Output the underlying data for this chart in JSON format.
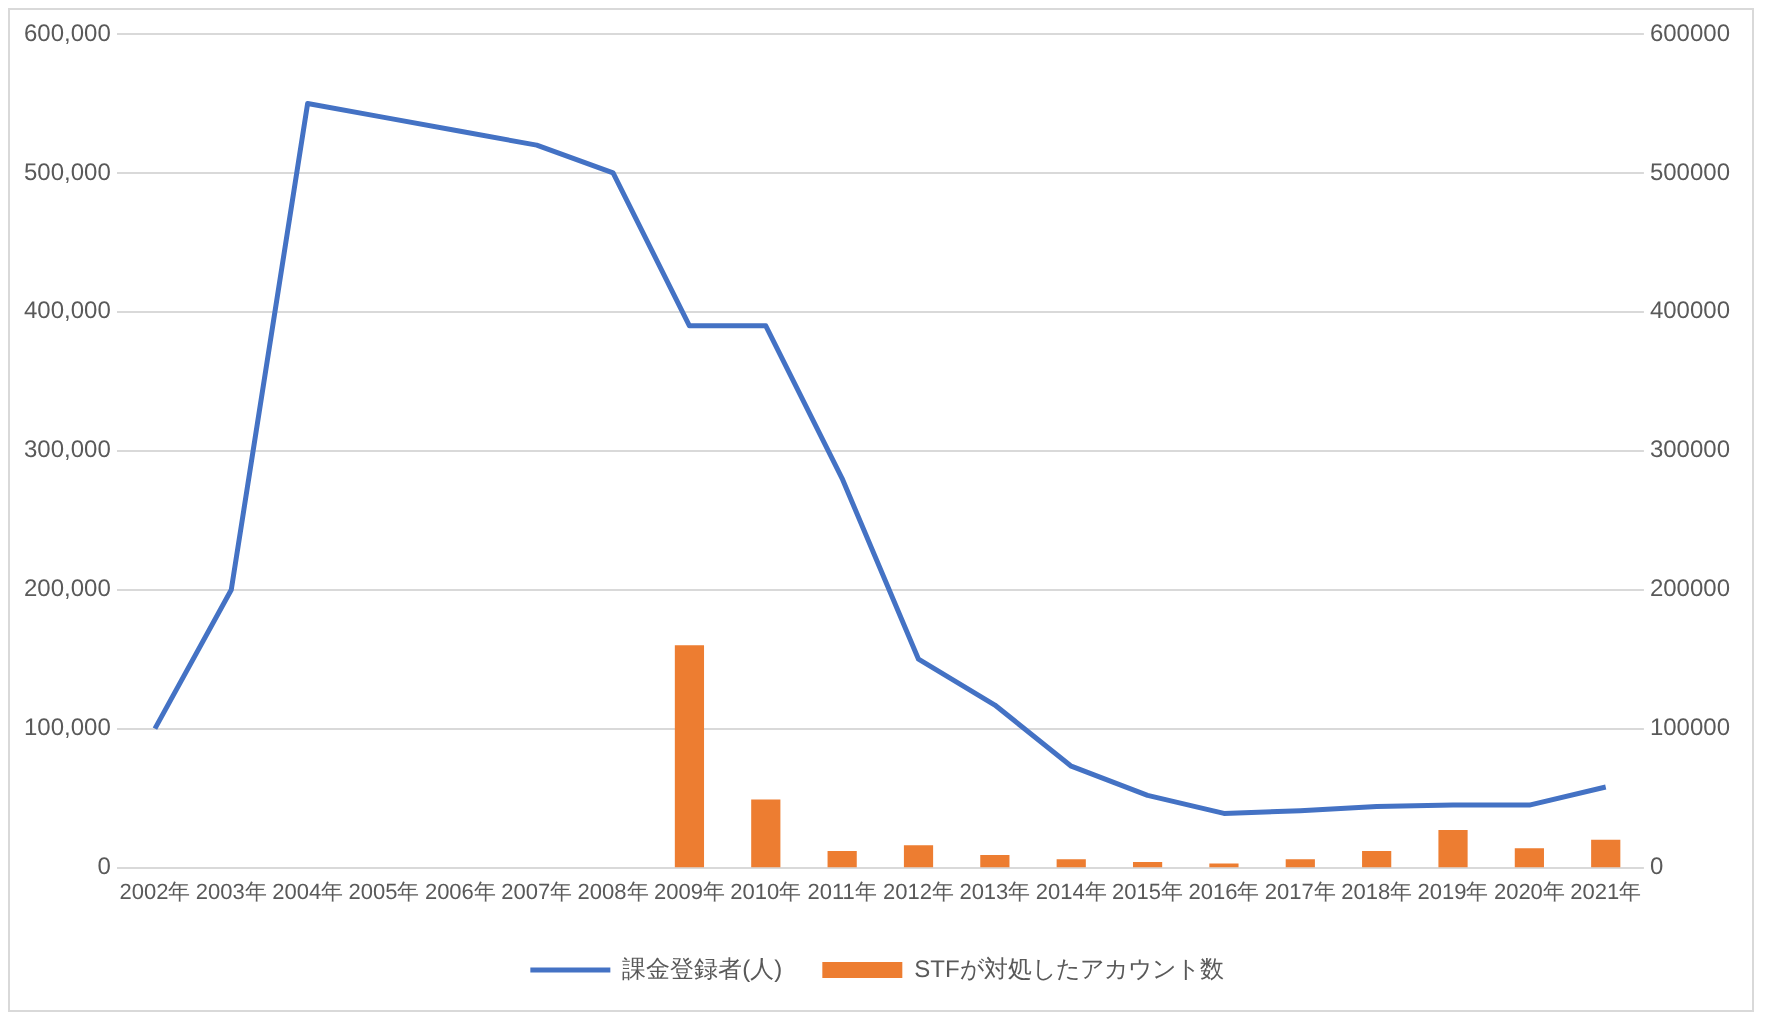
{
  "chart_data": {
    "type": "bar",
    "categories": [
      "2002年",
      "2003年",
      "2004年",
      "2005年",
      "2006年",
      "2007年",
      "2008年",
      "2009年",
      "2010年",
      "2011年",
      "2012年",
      "2013年",
      "2014年",
      "2015年",
      "2016年",
      "2017年",
      "2018年",
      "2019年",
      "2020年",
      "2021年"
    ],
    "series": [
      {
        "name": "課金登録者(人)",
        "type": "line",
        "color": "#4472c4",
        "axis": "y",
        "values": [
          100000,
          200000,
          550000,
          540000,
          530000,
          520000,
          500000,
          390000,
          390000,
          280000,
          150000,
          117000,
          73000,
          52000,
          39000,
          41000,
          44000,
          45000,
          45000,
          58000
        ]
      },
      {
        "name": "STFが対処したアカウント数",
        "color": "#ed7d31",
        "axis": "y2",
        "values": [
          null,
          null,
          null,
          null,
          null,
          null,
          null,
          160000,
          49000,
          12000,
          16000,
          9000,
          6000,
          4000,
          3000,
          6000,
          12000,
          27000,
          14000,
          20000
        ]
      }
    ],
    "ylim": [
      0,
      600000
    ],
    "yticks": [
      0,
      {
        "value": 100000,
        "label": "100,000"
      },
      {
        "value": 200000,
        "label": "200,000"
      },
      {
        "value": 300000,
        "label": "300,000"
      },
      {
        "value": 400000,
        "label": "400,000"
      },
      {
        "value": 500000,
        "label": "500,000"
      },
      {
        "value": 600000,
        "label": "600,000"
      }
    ],
    "y2lim": [
      0,
      600000
    ],
    "y2ticks": [
      0,
      100000,
      200000,
      300000,
      400000,
      500000,
      600000
    ],
    "grid": "y",
    "legend": "bottom",
    "marker": "none",
    "line_style": "solid"
  }
}
